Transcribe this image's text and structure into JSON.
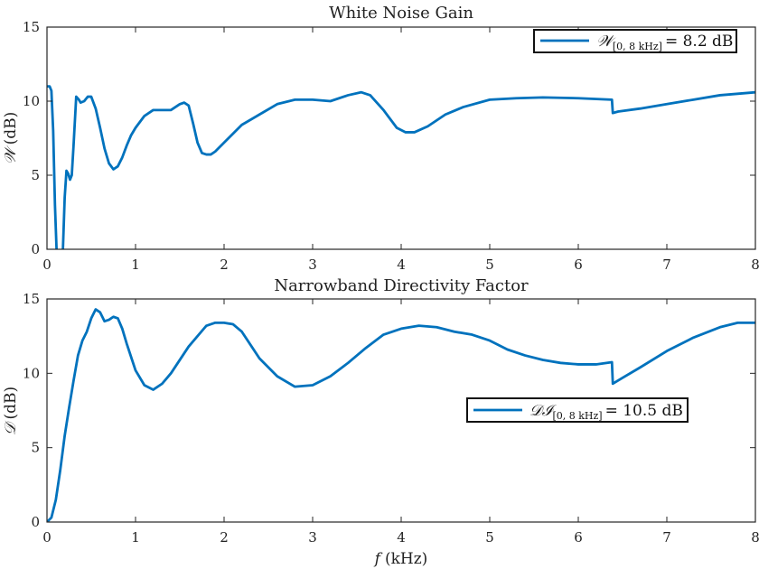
{
  "chart_data": [
    {
      "type": "line",
      "title": "White Noise Gain",
      "xlabel": "",
      "ylabel_symbol": "𝒲",
      "ylabel_unit": "(dB)",
      "xlim": [
        0,
        8
      ],
      "ylim": [
        0,
        15
      ],
      "xticks": [
        0,
        1,
        2,
        3,
        4,
        5,
        6,
        7,
        8
      ],
      "yticks": [
        0,
        5,
        10,
        15
      ],
      "grid": false,
      "legend_position": "top-right",
      "color": "#0072bd",
      "series": [
        {
          "legend_symbol": "𝒲",
          "legend_subscript": "[0, 8 kHz]",
          "legend_value": "= 8.2 dB",
          "x": [
            0,
            0.03,
            0.05,
            0.07,
            0.09,
            0.12,
            0.15,
            0.18,
            0.2,
            0.22,
            0.24,
            0.26,
            0.28,
            0.3,
            0.33,
            0.36,
            0.38,
            0.42,
            0.46,
            0.5,
            0.55,
            0.6,
            0.65,
            0.7,
            0.75,
            0.8,
            0.85,
            0.9,
            0.95,
            1.0,
            1.1,
            1.2,
            1.3,
            1.4,
            1.5,
            1.55,
            1.6,
            1.65,
            1.7,
            1.75,
            1.8,
            1.85,
            1.9,
            2.0,
            2.2,
            2.4,
            2.6,
            2.8,
            3.0,
            3.2,
            3.4,
            3.55,
            3.65,
            3.8,
            3.95,
            4.05,
            4.15,
            4.3,
            4.5,
            4.7,
            5.0,
            5.3,
            5.6,
            6.0,
            6.38,
            6.39,
            6.45,
            6.7,
            7.0,
            7.3,
            7.6,
            8.0
          ],
          "values": [
            11.0,
            11.0,
            10.7,
            8.0,
            3.0,
            -2.0,
            -2.0,
            0.0,
            3.5,
            5.3,
            5.1,
            4.7,
            5.0,
            7.0,
            10.3,
            10.1,
            9.9,
            10.0,
            10.3,
            10.3,
            9.5,
            8.2,
            6.8,
            5.8,
            5.4,
            5.6,
            6.2,
            7.0,
            7.7,
            8.2,
            9.0,
            9.4,
            9.4,
            9.4,
            9.8,
            9.9,
            9.7,
            8.5,
            7.2,
            6.5,
            6.4,
            6.4,
            6.6,
            7.2,
            8.4,
            9.1,
            9.8,
            10.1,
            10.1,
            10.0,
            10.4,
            10.6,
            10.4,
            9.4,
            8.2,
            7.9,
            7.9,
            8.3,
            9.1,
            9.6,
            10.1,
            10.2,
            10.25,
            10.2,
            10.1,
            9.2,
            9.3,
            9.5,
            9.8,
            10.1,
            10.4,
            10.6
          ]
        }
      ]
    },
    {
      "type": "line",
      "title": "Narrowband Directivity Factor",
      "xlabel_symbol": "f",
      "xlabel_unit": "(kHz)",
      "ylabel_symbol": "𝒟",
      "ylabel_unit": "(dB)",
      "xlim": [
        0,
        8
      ],
      "ylim": [
        0,
        15
      ],
      "xticks": [
        0,
        1,
        2,
        3,
        4,
        5,
        6,
        7,
        8
      ],
      "yticks": [
        0,
        5,
        10,
        15
      ],
      "grid": false,
      "legend_position": "center-right",
      "color": "#0072bd",
      "series": [
        {
          "legend_symbol": "𝒟ℐ",
          "legend_subscript": "[0, 8 kHz]",
          "legend_value": "= 10.5 dB",
          "x": [
            0,
            0.05,
            0.1,
            0.15,
            0.2,
            0.25,
            0.3,
            0.35,
            0.4,
            0.45,
            0.5,
            0.55,
            0.6,
            0.65,
            0.7,
            0.75,
            0.8,
            0.85,
            0.9,
            1.0,
            1.1,
            1.2,
            1.3,
            1.4,
            1.6,
            1.8,
            1.9,
            2.0,
            2.1,
            2.2,
            2.4,
            2.6,
            2.8,
            3.0,
            3.2,
            3.4,
            3.6,
            3.8,
            4.0,
            4.2,
            4.4,
            4.6,
            4.8,
            5.0,
            5.2,
            5.4,
            5.6,
            5.8,
            6.0,
            6.2,
            6.38,
            6.39,
            6.5,
            6.7,
            7.0,
            7.3,
            7.6,
            7.8,
            8.0
          ],
          "values": [
            0.0,
            0.3,
            1.5,
            3.5,
            5.8,
            7.7,
            9.5,
            11.2,
            12.2,
            12.8,
            13.7,
            14.3,
            14.1,
            13.5,
            13.6,
            13.8,
            13.7,
            13.0,
            12.0,
            10.2,
            9.2,
            8.9,
            9.3,
            10.0,
            11.8,
            13.2,
            13.4,
            13.4,
            13.3,
            12.8,
            11.0,
            9.8,
            9.1,
            9.2,
            9.8,
            10.7,
            11.7,
            12.6,
            13.0,
            13.2,
            13.1,
            12.8,
            12.6,
            12.2,
            11.6,
            11.2,
            10.9,
            10.7,
            10.6,
            10.6,
            10.75,
            9.3,
            9.7,
            10.4,
            11.5,
            12.4,
            13.1,
            13.4,
            13.4
          ]
        }
      ]
    }
  ]
}
